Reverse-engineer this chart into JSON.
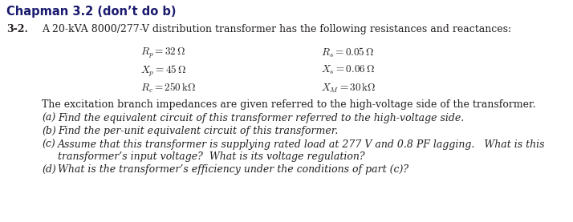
{
  "title": "Chapman 3.2 (don’t do b)",
  "problem_number": "3-2.",
  "intro": "A 20-kVA 8000/277-V distribution transformer has the following resistances and reactances:",
  "params_left": [
    "$R_p = 32\\,\\Omega$",
    "$X_p = 45\\,\\Omega$",
    "$R_c = 250\\,\\mathrm{k}\\Omega$"
  ],
  "params_right": [
    "$R_s = 0.05\\,\\Omega$",
    "$X_s = 0.06\\,\\Omega$",
    "$X_M = 30\\,\\mathrm{k}\\Omega$"
  ],
  "excitation_note": "The excitation branch impedances are given referred to the high-voltage side of the transformer.",
  "part_a": "Find the equivalent circuit of this transformer referred to the high-voltage side.",
  "part_b": "Find the per-unit equivalent circuit of this transformer.",
  "part_c1": "Assume that this transformer is supplying rated load at 277 V and 0.8 PF lagging.   What is this",
  "part_c2": "transformer’s input voltage?  What is its voltage regulation?",
  "part_d": "What is the transformer’s efficiency under the conditions of part (c)?",
  "bg_color": "#ffffff",
  "text_color": "#231f20",
  "title_color": "#1a1a6e",
  "font_size_title": 10.5,
  "font_size_body": 9.0,
  "font_size_math": 9.5
}
